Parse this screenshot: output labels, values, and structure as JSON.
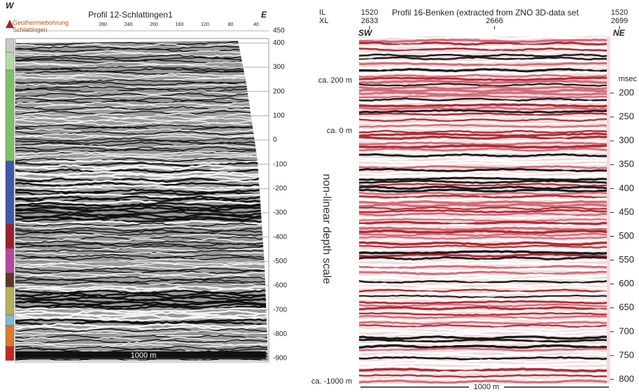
{
  "left_panel": {
    "corner_left": "W",
    "corner_right": "E",
    "title": "Profil  12-Schlattingen1",
    "well_label": [
      "Geothermiebohrung",
      "Schlattingen"
    ],
    "top_ticks": [
      280,
      240,
      200,
      160,
      120,
      80,
      40
    ],
    "depth_ticks": [
      450,
      400,
      300,
      200,
      100,
      0,
      -100,
      -200,
      -300,
      -400,
      -500,
      -600,
      -700,
      -800,
      -900
    ],
    "scale_bar": "1000 m"
  },
  "right_panel": {
    "il_label": "IL",
    "xl_label": "XL",
    "il_values": [
      1520,
      1520
    ],
    "xl_values": [
      2633,
      2666,
      2699
    ],
    "title": "Profil  16-Benken (extracted from ZNO 3D-data set",
    "corner_left": "SW",
    "corner_right": "NE",
    "unit": "msec",
    "time_ticks": [
      200,
      250,
      300,
      350,
      400,
      450,
      500,
      550,
      600,
      650,
      700,
      750,
      800
    ],
    "depth_labels": [
      "ca. 200 m",
      "ca. 0 m",
      "ca. -1000 m"
    ],
    "axis_label": "non-linear depth scale",
    "scale_bar": "1000 m"
  }
}
